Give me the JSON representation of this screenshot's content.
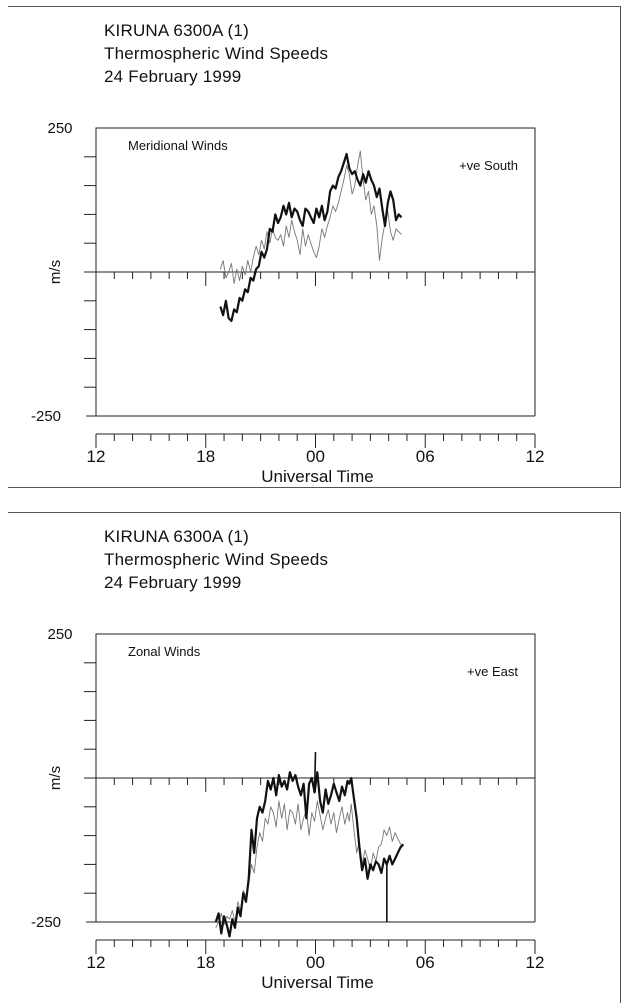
{
  "chart_data": [
    {
      "type": "line",
      "title": [
        "KIRUNA 6300A (1)",
        "Thermospheric Wind Speeds",
        "24 February 1999"
      ],
      "panel_label": "Meridional Winds",
      "sign_note": "+ve South",
      "ylabel": "m/s",
      "xlabel": "Universal Time",
      "ylim": [
        -250,
        250
      ],
      "yticklabels": [
        "250",
        "-250"
      ],
      "xlim": [
        12,
        36
      ],
      "xticks": [
        12,
        18,
        24,
        30,
        36
      ],
      "xticklabels": [
        "12",
        "18",
        "00",
        "06",
        "12"
      ],
      "grid": false,
      "series": [
        {
          "style": "thick",
          "x": [
            18.8,
            18.95,
            19.1,
            19.25,
            19.4,
            19.55,
            19.7,
            19.85,
            20.0,
            20.15,
            20.3,
            20.45,
            20.6,
            20.75,
            20.9,
            21.05,
            21.2,
            21.35,
            21.5,
            21.65,
            21.8,
            21.95,
            22.1,
            22.25,
            22.4,
            22.55,
            22.7,
            22.85,
            23.0,
            23.15,
            23.3,
            23.45,
            23.6,
            23.75,
            23.9,
            24.05,
            24.2,
            24.35,
            24.5,
            24.65,
            24.8,
            24.95,
            25.1,
            25.25,
            25.4,
            25.55,
            25.7,
            25.85,
            26.0,
            26.15,
            26.3,
            26.45,
            26.6,
            26.75,
            26.9,
            27.05,
            27.2,
            27.35,
            27.5,
            27.65,
            27.8,
            27.95,
            28.1,
            28.25,
            28.4,
            28.55,
            28.7
          ],
          "y": [
            -60,
            -75,
            -50,
            -80,
            -85,
            -65,
            -70,
            -45,
            -50,
            -30,
            -35,
            -10,
            -15,
            5,
            10,
            35,
            25,
            40,
            75,
            70,
            100,
            85,
            95,
            115,
            100,
            120,
            95,
            110,
            105,
            90,
            80,
            110,
            105,
            95,
            85,
            110,
            95,
            115,
            90,
            105,
            140,
            150,
            145,
            165,
            175,
            190,
            205,
            180,
            170,
            175,
            160,
            150,
            170,
            155,
            175,
            160,
            150,
            130,
            145,
            110,
            80,
            120,
            140,
            125,
            90,
            100,
            95
          ]
        },
        {
          "style": "thin",
          "x": [
            18.8,
            18.95,
            19.1,
            19.25,
            19.4,
            19.55,
            19.7,
            19.85,
            20.0,
            20.15,
            20.3,
            20.45,
            20.6,
            20.75,
            20.9,
            21.05,
            21.2,
            21.35,
            21.5,
            21.65,
            21.8,
            21.95,
            22.1,
            22.25,
            22.4,
            22.55,
            22.7,
            22.85,
            23.0,
            23.15,
            23.3,
            23.45,
            23.6,
            23.75,
            23.9,
            24.05,
            24.2,
            24.35,
            24.5,
            24.65,
            24.8,
            24.95,
            25.1,
            25.25,
            25.4,
            25.55,
            25.7,
            25.85,
            26.0,
            26.15,
            26.3,
            26.45,
            26.6,
            26.75,
            26.9,
            27.05,
            27.2,
            27.35,
            27.5,
            27.65,
            27.8,
            27.95,
            28.1,
            28.25,
            28.4,
            28.55,
            28.7
          ],
          "y": [
            5,
            20,
            -10,
            0,
            15,
            -20,
            5,
            -15,
            10,
            -5,
            20,
            0,
            25,
            45,
            30,
            55,
            40,
            70,
            50,
            75,
            60,
            55,
            65,
            45,
            80,
            60,
            90,
            70,
            55,
            30,
            75,
            45,
            65,
            50,
            35,
            25,
            45,
            75,
            60,
            80,
            95,
            115,
            105,
            120,
            140,
            160,
            185,
            170,
            135,
            150,
            185,
            210,
            160,
            125,
            140,
            100,
            115,
            80,
            20,
            60,
            85,
            105,
            70,
            55,
            75,
            70,
            65
          ]
        }
      ]
    },
    {
      "type": "line",
      "title": [
        "KIRUNA 6300A (1)",
        "Thermospheric Wind Speeds",
        "24 February 1999"
      ],
      "panel_label": "Zonal Winds",
      "sign_note": "+ve East",
      "ylabel": "m/s",
      "xlabel": "Universal Time",
      "ylim": [
        -250,
        250
      ],
      "yticklabels": [
        "250",
        "-250"
      ],
      "xlim": [
        12,
        36
      ],
      "xticks": [
        12,
        18,
        24,
        30,
        36
      ],
      "xticklabels": [
        "12",
        "18",
        "00",
        "06",
        "12"
      ],
      "grid": false,
      "series": [
        {
          "style": "thick",
          "x": [
            18.55,
            18.7,
            18.85,
            19.0,
            19.15,
            19.3,
            19.45,
            19.6,
            19.75,
            19.9,
            20.05,
            20.2,
            20.35,
            20.5,
            20.65,
            20.8,
            20.95,
            21.1,
            21.25,
            21.4,
            21.55,
            21.7,
            21.85,
            22.0,
            22.15,
            22.3,
            22.45,
            22.6,
            22.75,
            22.9,
            23.05,
            23.2,
            23.35,
            23.5,
            23.65,
            23.8,
            23.95,
            24.1,
            24.25,
            24.4,
            24.55,
            24.7,
            24.85,
            25.0,
            25.15,
            25.3,
            25.45,
            25.6,
            25.75,
            25.85,
            25.95,
            26.1,
            26.25,
            26.4,
            26.55,
            26.7,
            26.85,
            27.0,
            27.15,
            27.3,
            27.45,
            27.6,
            27.75,
            27.9,
            28.05,
            28.2,
            28.35,
            28.5,
            28.65,
            28.8
          ],
          "y": [
            -250,
            -235,
            -270,
            -240,
            -255,
            -275,
            -245,
            -260,
            -225,
            -240,
            -200,
            -215,
            -175,
            -90,
            -130,
            -70,
            -50,
            -60,
            -40,
            -5,
            -20,
            0,
            -30,
            5,
            -15,
            -5,
            -20,
            10,
            -5,
            5,
            -15,
            -30,
            -10,
            -70,
            -10,
            0,
            -25,
            10,
            -40,
            -60,
            -20,
            -45,
            -30,
            -10,
            -25,
            -40,
            -15,
            -30,
            -5,
            -10,
            0,
            -35,
            -70,
            -120,
            -160,
            -140,
            -175,
            -150,
            -160,
            -145,
            -150,
            -165,
            -140,
            -150,
            -135,
            -150,
            -140,
            -130,
            -120,
            -115
          ],
          "spikes": [
            [
              24.0,
              45
            ],
            [
              27.9,
              -250
            ]
          ]
        },
        {
          "style": "thin",
          "x": [
            18.55,
            18.7,
            18.85,
            19.0,
            19.15,
            19.3,
            19.45,
            19.6,
            19.75,
            19.9,
            20.05,
            20.2,
            20.35,
            20.5,
            20.65,
            20.8,
            20.95,
            21.1,
            21.25,
            21.4,
            21.55,
            21.7,
            21.85,
            22.0,
            22.15,
            22.3,
            22.45,
            22.6,
            22.75,
            22.9,
            23.05,
            23.2,
            23.35,
            23.5,
            23.65,
            23.8,
            23.95,
            24.1,
            24.25,
            24.4,
            24.55,
            24.7,
            24.85,
            25.0,
            25.15,
            25.3,
            25.45,
            25.6,
            25.75,
            25.85,
            25.95,
            26.1,
            26.25,
            26.4,
            26.55,
            26.7,
            26.85,
            27.0,
            27.15,
            27.3,
            27.45,
            27.6,
            27.75,
            27.9,
            28.05,
            28.2,
            28.35,
            28.5,
            28.65,
            28.8
          ],
          "y": [
            -260,
            -250,
            -235,
            -255,
            -240,
            -245,
            -230,
            -250,
            -215,
            -230,
            -195,
            -205,
            -185,
            -150,
            -165,
            -120,
            -95,
            -110,
            -70,
            -80,
            -50,
            -60,
            -85,
            -40,
            -70,
            -45,
            -90,
            -55,
            -60,
            -80,
            -45,
            -90,
            -70,
            -55,
            -100,
            -60,
            -75,
            -40,
            -65,
            -90,
            -70,
            -55,
            -80,
            -60,
            -95,
            -70,
            -50,
            -80,
            -60,
            -75,
            -45,
            -90,
            -130,
            -110,
            -150,
            -125,
            -140,
            -160,
            -130,
            -145,
            -120,
            -115,
            -90,
            -100,
            -85,
            -110,
            -95,
            -105,
            -115,
            -120
          ]
        }
      ]
    }
  ]
}
